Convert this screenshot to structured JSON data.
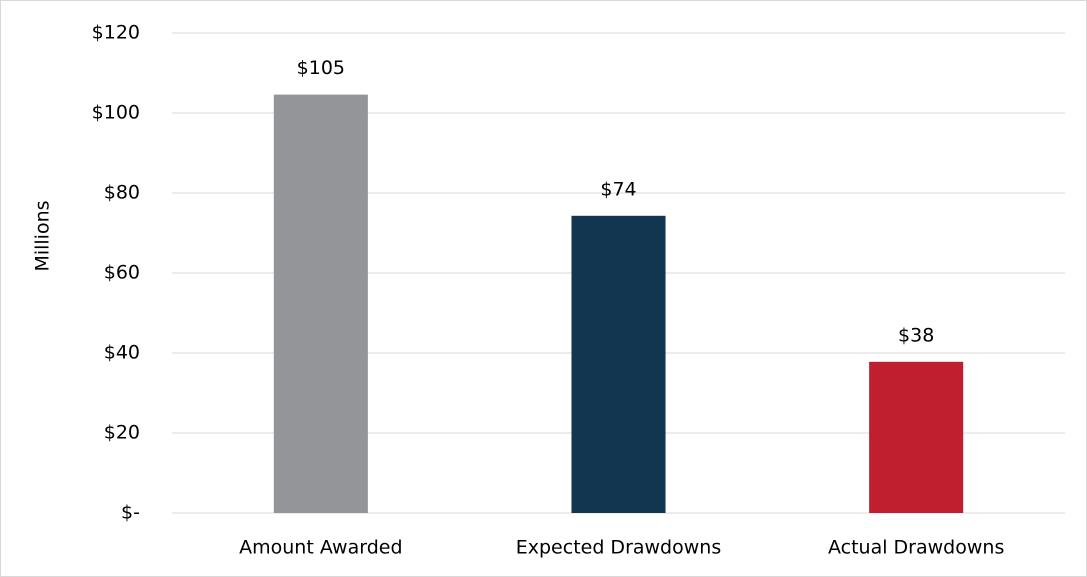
{
  "chart_data": {
    "type": "bar",
    "y_label": "Millions",
    "categories": [
      "Amount Awarded",
      "Expected Drawdowns",
      "Actual Drawdowns"
    ],
    "values": [
      104.6,
      74.3,
      37.8
    ],
    "value_labels": [
      "$105",
      "$74",
      "$38"
    ],
    "colors": [
      "#939598",
      "#12364f",
      "#c01f2f"
    ],
    "ylim": [
      0,
      120
    ],
    "yticks": [
      {
        "value": 0,
        "label": "$-"
      },
      {
        "value": 20,
        "label": "$20"
      },
      {
        "value": 40,
        "label": "$40"
      },
      {
        "value": 60,
        "label": "$60"
      },
      {
        "value": 80,
        "label": "$80"
      },
      {
        "value": 100,
        "label": "$100"
      },
      {
        "value": 120,
        "label": "$120"
      }
    ],
    "grid": true
  }
}
